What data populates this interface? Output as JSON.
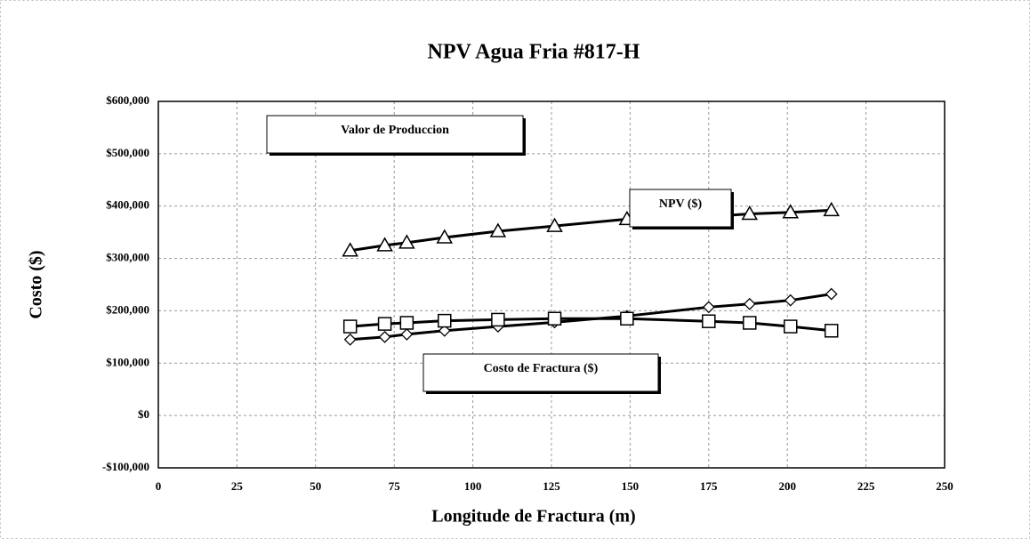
{
  "chart_data": {
    "type": "line",
    "title": "NPV Agua Fria #817-H",
    "x_label": "Longitude de Fractura (m)",
    "y_label": "Costo ($)",
    "x": [
      61,
      72,
      79,
      91,
      108,
      126,
      149,
      175,
      188,
      201,
      214
    ],
    "series": [
      {
        "name": "Valor de Produccion",
        "color": "#000000",
        "marker": "triangle",
        "values": [
          315000,
          325000,
          330000,
          340000,
          352000,
          362000,
          375000,
          380000,
          385000,
          388000,
          392000
        ]
      },
      {
        "name": "NPV ($)",
        "color": "#000000",
        "marker": "diamond",
        "values": [
          145000,
          150000,
          155000,
          162000,
          170000,
          178000,
          190000,
          207000,
          213000,
          220000,
          232000
        ]
      },
      {
        "name": "Costo de Fractura ($)",
        "color": "#000000",
        "marker": "square",
        "values": [
          170000,
          175000,
          177000,
          181000,
          183000,
          185000,
          185000,
          180000,
          177000,
          170000,
          162000
        ]
      }
    ],
    "xlim": [
      0,
      250
    ],
    "xticks": [
      0,
      25,
      50,
      75,
      100,
      125,
      150,
      175,
      200,
      225,
      250
    ],
    "ylim": [
      -100000,
      600000
    ],
    "yticks": [
      {
        "value": -100000,
        "label": "-$100,000"
      },
      {
        "value": 0,
        "label": "$0"
      },
      {
        "value": 100000,
        "label": "$100,000"
      },
      {
        "value": 200000,
        "label": "$200,000"
      },
      {
        "value": 300000,
        "label": "$300,000"
      },
      {
        "value": 400000,
        "label": "$400,000"
      },
      {
        "value": 500000,
        "label": "$500,000"
      },
      {
        "value": 600000,
        "label": "$600,000"
      }
    ],
    "grid": true
  }
}
